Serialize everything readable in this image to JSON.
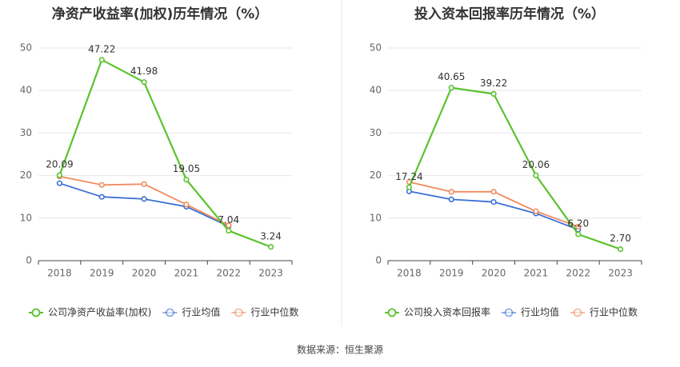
{
  "source_label": "数据来源：恒生聚源",
  "colors": {
    "company": "#5ac32e",
    "average": "#3b6fd6",
    "median": "#f08a5d",
    "grid": "#e6e6ef",
    "axis": "#555555",
    "title": "#333333",
    "divider": "#e8e8e8"
  },
  "chart_data": [
    {
      "type": "line",
      "title": "净资产收益率(加权)历年情况（%）",
      "x": [
        "2018",
        "2019",
        "2020",
        "2021",
        "2022",
        "2023"
      ],
      "ylim": [
        0,
        50
      ],
      "yticks": [
        0,
        10,
        20,
        30,
        40,
        50
      ],
      "grid": true,
      "legend_position": "bottom",
      "series": [
        {
          "name": "公司净资产收益率(加权)",
          "role": "company",
          "values": [
            20.09,
            47.22,
            41.98,
            19.05,
            7.04,
            3.24
          ],
          "labels": [
            "20.09",
            "47.22",
            "41.98",
            "19.05",
            "7.04",
            "3.24"
          ]
        },
        {
          "name": "行业均值",
          "role": "average",
          "values": [
            18.2,
            15.0,
            14.5,
            12.7,
            8.1,
            null
          ]
        },
        {
          "name": "行业中位数",
          "role": "median",
          "values": [
            19.8,
            17.8,
            18.0,
            13.2,
            8.3,
            null
          ]
        }
      ]
    },
    {
      "type": "line",
      "title": "投入资本回报率历年情况（%）",
      "x": [
        "2018",
        "2019",
        "2020",
        "2021",
        "2022",
        "2023"
      ],
      "ylim": [
        0,
        50
      ],
      "yticks": [
        0,
        10,
        20,
        30,
        40,
        50
      ],
      "grid": true,
      "legend_position": "bottom",
      "series": [
        {
          "name": "公司投入资本回报率",
          "role": "company",
          "values": [
            17.24,
            40.65,
            39.22,
            20.06,
            6.2,
            2.7
          ],
          "labels": [
            "17.24",
            "40.65",
            "39.22",
            "20.06",
            "6.20",
            "2.70"
          ]
        },
        {
          "name": "行业均值",
          "role": "average",
          "values": [
            16.3,
            14.4,
            13.8,
            11.1,
            7.3,
            null
          ]
        },
        {
          "name": "行业中位数",
          "role": "median",
          "values": [
            18.5,
            16.2,
            16.2,
            11.6,
            8.0,
            null
          ]
        }
      ]
    }
  ]
}
